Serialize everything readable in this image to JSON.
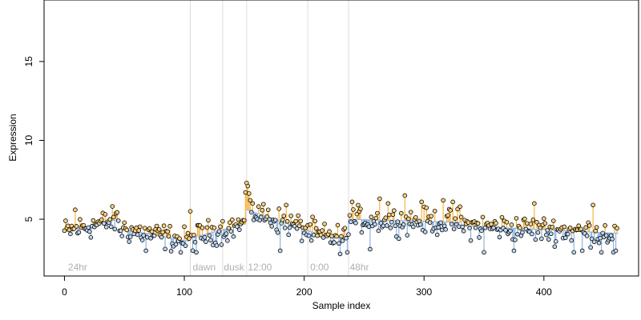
{
  "chart_data": {
    "type": "scatter",
    "title": "",
    "xlabel": "Sample index",
    "ylabel": "Expression",
    "xlim": [
      -17,
      479
    ],
    "ylim": [
      1.4,
      18.9
    ],
    "x_ticks": [
      0,
      100,
      200,
      300,
      400
    ],
    "y_ticks": [
      5,
      10,
      15
    ],
    "grid": false,
    "legend": "none",
    "trend_upper_color": "#f5a623",
    "trend_lower_color": "#7aa6d8",
    "point_fill_above": "#ffd27f",
    "point_fill_below": "#bcd6f2",
    "vlines": [
      105,
      132,
      152,
      203,
      237
    ],
    "annotations": [
      {
        "text": "24hr",
        "x": 3
      },
      {
        "text": "dawn",
        "x": 107
      },
      {
        "text": "dusk",
        "x": 133
      },
      {
        "text": "12:00",
        "x": 153
      },
      {
        "text": "0:00",
        "x": 205
      },
      {
        "text": "48hr",
        "x": 238
      }
    ],
    "segments": [
      {
        "x0": 0,
        "x1": 45,
        "level0": 4.2,
        "level1": 5.0
      },
      {
        "x0": 46,
        "x1": 104,
        "level0": 4.4,
        "level1": 3.6
      },
      {
        "x0": 105,
        "x1": 151,
        "level0": 3.8,
        "level1": 4.7
      },
      {
        "x0": 152,
        "x1": 210,
        "level0": 5.6,
        "level1": 4.1
      },
      {
        "x0": 211,
        "x1": 236,
        "level0": 3.9,
        "level1": 3.8
      },
      {
        "x0": 237,
        "x1": 330,
        "level0": 5.0,
        "level1": 4.8
      },
      {
        "x0": 331,
        "x1": 462,
        "level0": 4.6,
        "level1": 4.1
      }
    ],
    "peaks": [
      {
        "x": 152,
        "y": 7.3
      },
      {
        "x": 153,
        "y": 7.1
      },
      {
        "x": 151,
        "y": 6.7
      },
      {
        "x": 155,
        "y": 6.2
      },
      {
        "x": 157,
        "y": 6.0
      },
      {
        "x": 9,
        "y": 5.6
      },
      {
        "x": 105,
        "y": 5.5
      },
      {
        "x": 185,
        "y": 5.9
      },
      {
        "x": 263,
        "y": 6.3
      },
      {
        "x": 284,
        "y": 6.5
      },
      {
        "x": 316,
        "y": 6.2
      },
      {
        "x": 392,
        "y": 6.0
      },
      {
        "x": 441,
        "y": 5.9
      },
      {
        "x": 240,
        "y": 6.1
      },
      {
        "x": 298,
        "y": 6.1
      },
      {
        "x": 270,
        "y": 6.0
      },
      {
        "x": 324,
        "y": 6.1
      },
      {
        "x": 330,
        "y": 5.8
      }
    ],
    "troughs": [
      {
        "x": 230,
        "y": 2.8
      },
      {
        "x": 236,
        "y": 2.9
      },
      {
        "x": 350,
        "y": 2.9
      },
      {
        "x": 425,
        "y": 2.9
      },
      {
        "x": 458,
        "y": 2.9
      },
      {
        "x": 460,
        "y": 3.0
      },
      {
        "x": 180,
        "y": 3.0
      },
      {
        "x": 97,
        "y": 2.9
      },
      {
        "x": 68,
        "y": 3.0
      },
      {
        "x": 110,
        "y": 2.9
      },
      {
        "x": 255,
        "y": 3.1
      },
      {
        "x": 375,
        "y": 3.0
      },
      {
        "x": 432,
        "y": 3.0
      },
      {
        "x": 448,
        "y": 2.9
      }
    ],
    "n_points": 462,
    "noise": 0.7
  }
}
